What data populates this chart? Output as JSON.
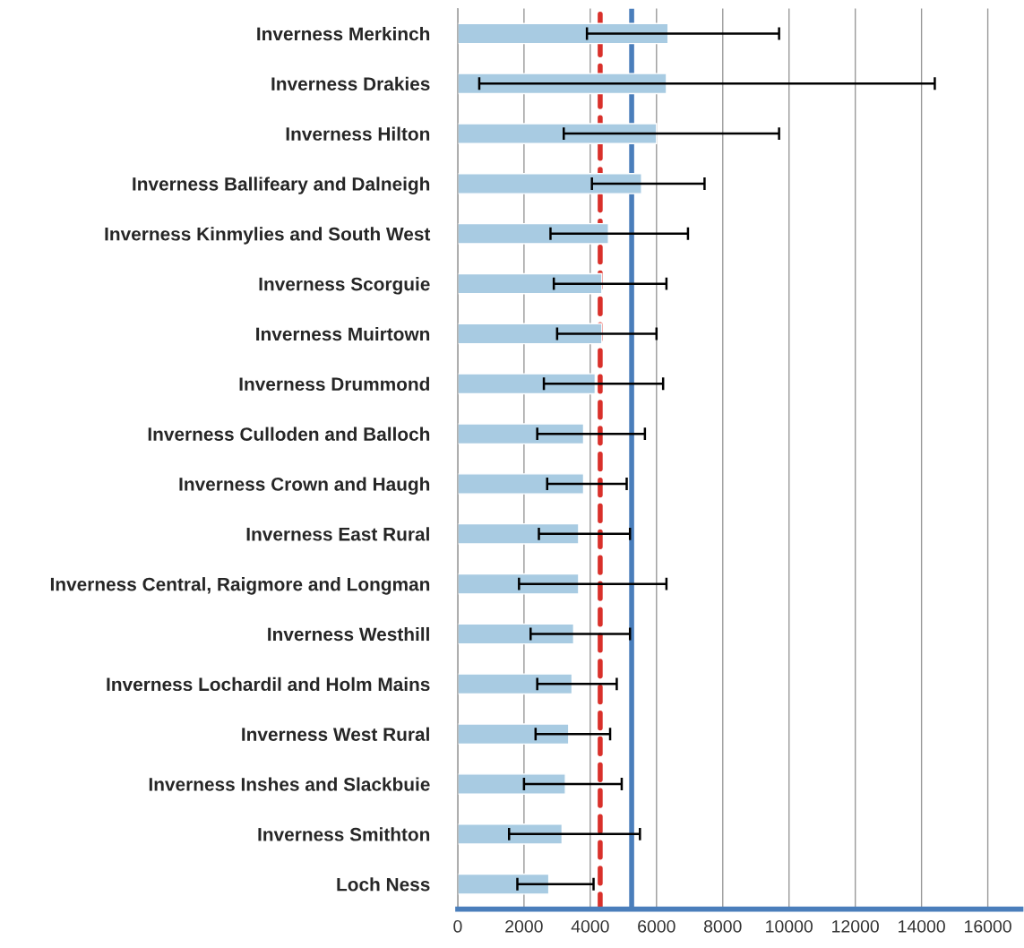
{
  "chart_data": {
    "type": "bar",
    "orientation": "horizontal",
    "categories": [
      "Inverness Merkinch",
      "Inverness Drakies",
      "Inverness Hilton",
      "Inverness Ballifeary and Dalneigh",
      "Inverness Kinmylies and South West",
      "Inverness Scorguie",
      "Inverness Muirtown",
      "Inverness Drummond",
      "Inverness Culloden and Balloch",
      "Inverness Crown and Haugh",
      "Inverness East Rural",
      "Inverness Central, Raigmore and Longman",
      "Inverness Westhill",
      "Inverness Lochardil and Holm Mains",
      "Inverness West Rural",
      "Inverness Inshes and Slackbuie",
      "Inverness Smithton",
      "Loch Ness"
    ],
    "values": [
      6350,
      6300,
      6000,
      5550,
      4550,
      4350,
      4350,
      4150,
      3800,
      3800,
      3650,
      3650,
      3500,
      3450,
      3350,
      3250,
      3150,
      2750
    ],
    "errors": [
      [
        3900,
        9700
      ],
      [
        650,
        14400
      ],
      [
        3200,
        9700
      ],
      [
        4050,
        7450
      ],
      [
        2800,
        6950
      ],
      [
        2900,
        6300
      ],
      [
        3000,
        6000
      ],
      [
        2600,
        6200
      ],
      [
        2400,
        5650
      ],
      [
        2700,
        5100
      ],
      [
        2450,
        5200
      ],
      [
        1850,
        6300
      ],
      [
        2200,
        5200
      ],
      [
        2400,
        4800
      ],
      [
        2350,
        4600
      ],
      [
        2000,
        4950
      ],
      [
        1550,
        5500
      ],
      [
        1800,
        4100
      ]
    ],
    "color": "#a8cbe2",
    "xlim": [
      0,
      17000
    ],
    "xticks": [
      0,
      2000,
      4000,
      6000,
      8000,
      10000,
      12000,
      14000,
      16000
    ],
    "grid": "x",
    "ref_lines": [
      {
        "axis": "x",
        "value": 4300,
        "color": "#d9302a",
        "line_style": "dashed"
      },
      {
        "axis": "x",
        "value": 5250,
        "color": "#4a7ebb",
        "line_style": "solid"
      }
    ]
  }
}
